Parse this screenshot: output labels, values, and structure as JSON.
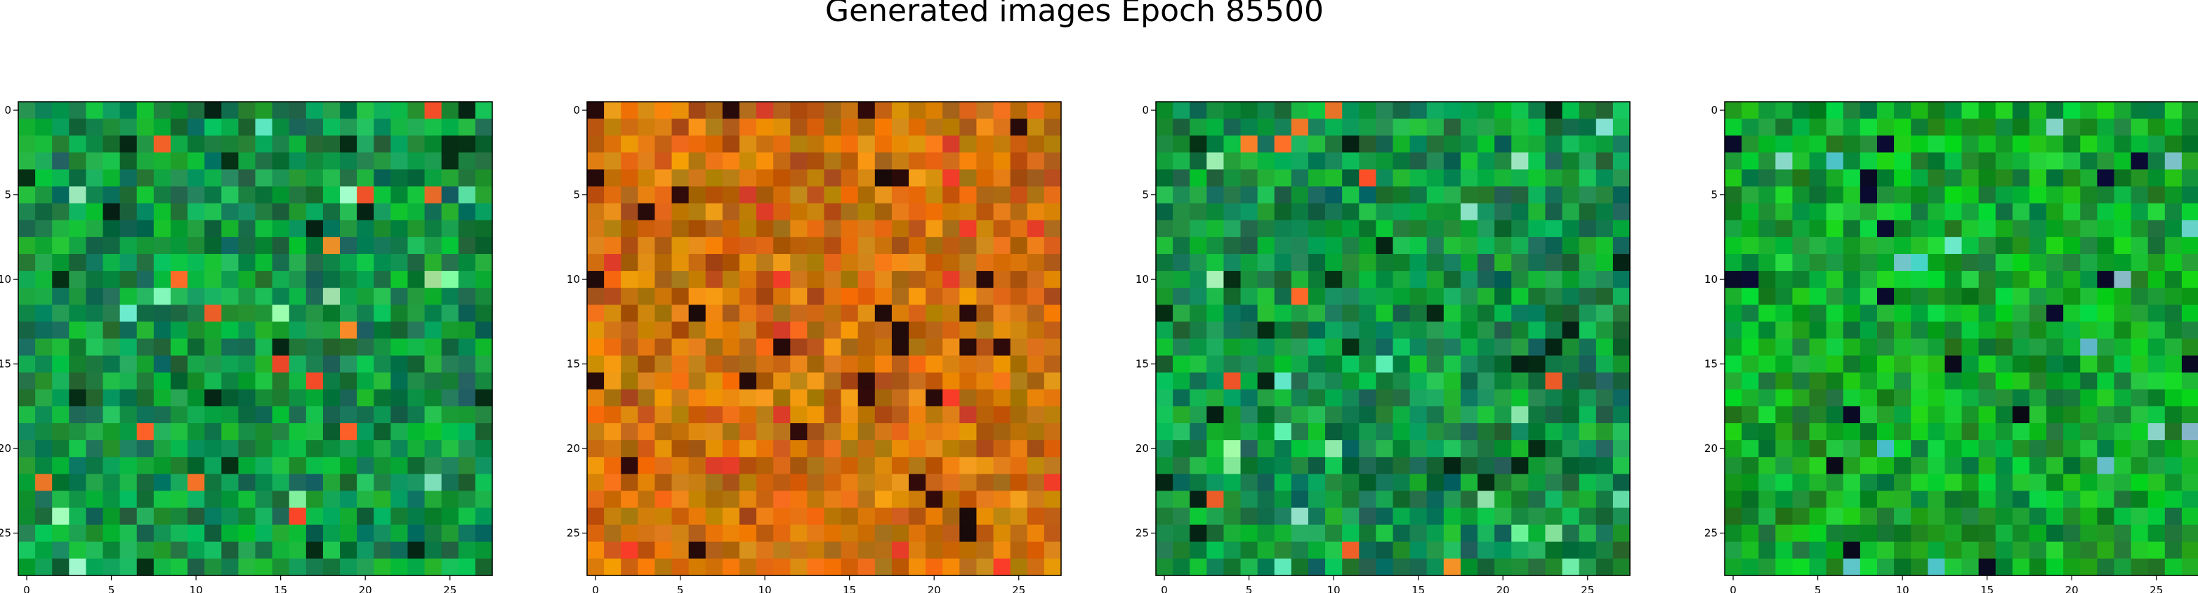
{
  "figure": {
    "title": "Generated images Epoch 85500"
  },
  "panels": [
    {
      "name": "panel-1",
      "palette": "green"
    },
    {
      "name": "panel-2",
      "palette": "orange"
    },
    {
      "name": "panel-3",
      "palette": "green"
    },
    {
      "name": "panel-4",
      "palette": "green-bright"
    }
  ],
  "axis": {
    "x_ticks": [
      "0",
      "5",
      "10",
      "15",
      "20",
      "25"
    ],
    "y_ticks": [
      "0",
      "5",
      "10",
      "15",
      "20",
      "25"
    ],
    "grid_size": 28
  },
  "colors": {
    "frame": "#000000",
    "tick_text": "#000000"
  }
}
